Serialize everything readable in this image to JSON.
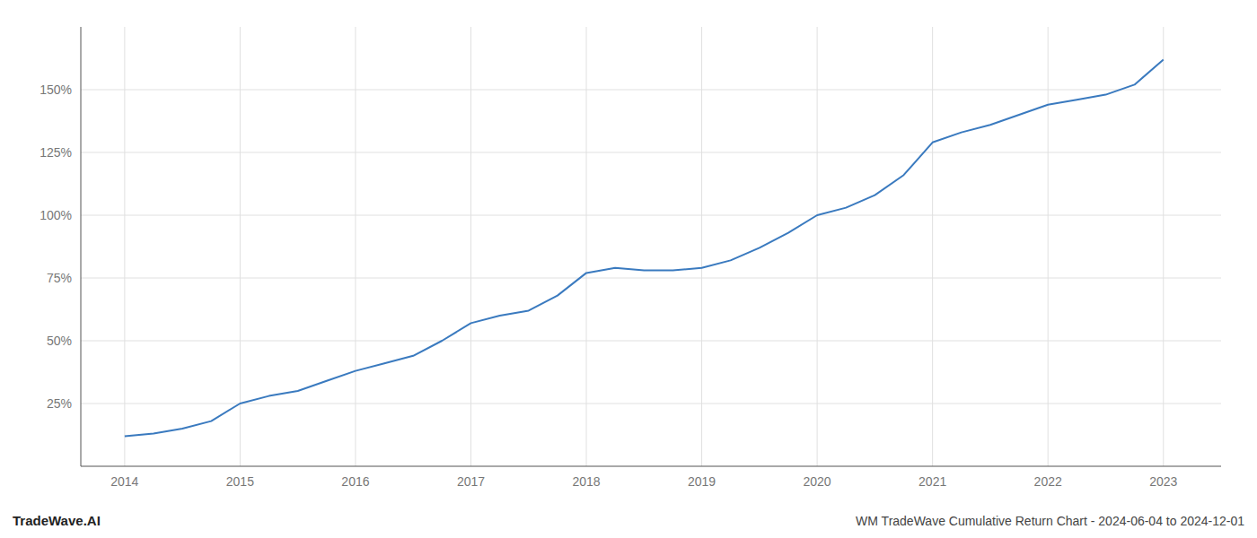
{
  "chart_data": {
    "type": "line",
    "title": "WM TradeWave Cumulative Return Chart - 2024-06-04 to 2024-12-01",
    "annotations": [
      "TradeWave.AI"
    ],
    "x": [
      2014.0,
      2014.25,
      2014.5,
      2014.75,
      2015.0,
      2015.25,
      2015.5,
      2015.75,
      2016.0,
      2016.25,
      2016.5,
      2016.75,
      2017.0,
      2017.25,
      2017.5,
      2017.75,
      2018.0,
      2018.25,
      2018.5,
      2018.75,
      2019.0,
      2019.25,
      2019.5,
      2019.75,
      2020.0,
      2020.25,
      2020.5,
      2020.75,
      2021.0,
      2021.25,
      2021.5,
      2021.75,
      2022.0,
      2022.25,
      2022.5,
      2022.75,
      2023.0
    ],
    "values": [
      12,
      13,
      15,
      18,
      25,
      28,
      30,
      34,
      38,
      41,
      44,
      50,
      57,
      60,
      62,
      68,
      77,
      79,
      78,
      78,
      79,
      82,
      87,
      93,
      100,
      103,
      108,
      116,
      129,
      133,
      136,
      140,
      144,
      146,
      148,
      152,
      162
    ],
    "color": "#3a7abf",
    "xlim": [
      2013.62,
      2023.5
    ],
    "ylim": [
      0,
      175
    ],
    "xticks": [
      2014,
      2015,
      2016,
      2017,
      2018,
      2019,
      2020,
      2021,
      2022,
      2023
    ],
    "yticks": [
      {
        "value": 25,
        "label": "25%"
      },
      {
        "value": 50,
        "label": "50%"
      },
      {
        "value": 75,
        "label": "75%"
      },
      {
        "value": 100,
        "label": "100%"
      },
      {
        "value": 125,
        "label": "125%"
      },
      {
        "value": 150,
        "label": "150%"
      }
    ],
    "grid": true
  }
}
